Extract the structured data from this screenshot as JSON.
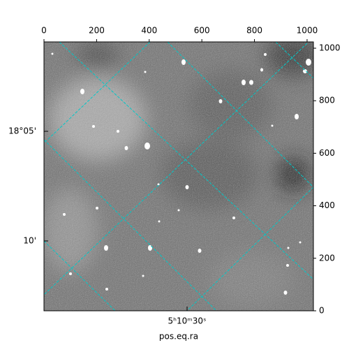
{
  "chart_data": {
    "type": "image",
    "xlabel": "pos.eq.ra",
    "xlim": [
      0,
      1024
    ],
    "xticks": [
      0,
      200,
      400,
      600,
      800,
      1000
    ],
    "ylim": [
      0,
      1024
    ],
    "yticks": [
      0,
      200,
      400,
      600,
      800,
      1000
    ],
    "dec_labels": [
      "18°05'",
      "10'"
    ],
    "ra_labels": [
      "5ʰ10ᵐ30ˢ"
    ],
    "grid_color": "#00c8c8"
  }
}
